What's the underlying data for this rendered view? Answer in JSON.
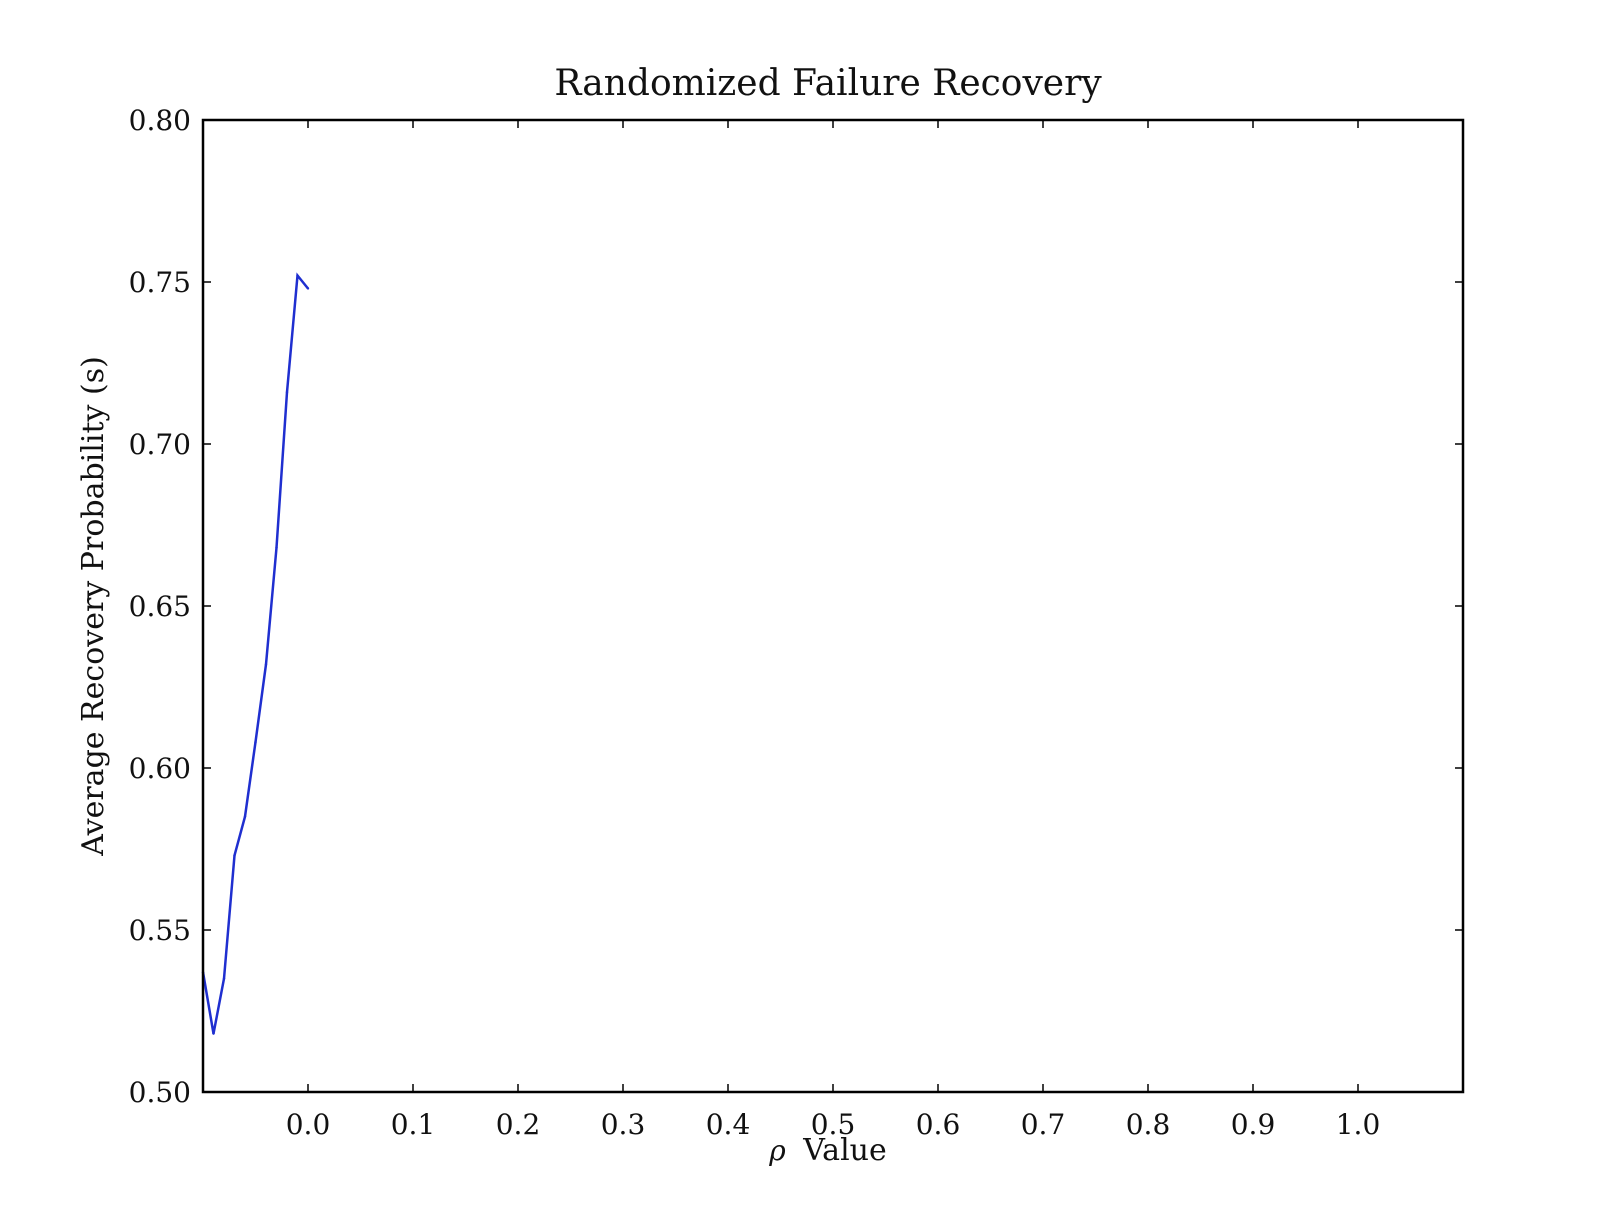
{
  "chart_data": {
    "type": "line",
    "title": "Randomized Failure Recovery",
    "xlabel_symbol": "ρ",
    "xlabel": "Value",
    "ylabel": "Average Recovery Probability (s)",
    "xlim": [
      -0.1,
      1.1
    ],
    "ylim": [
      0.5,
      0.8
    ],
    "xticks": [
      0.0,
      0.1,
      0.2,
      0.3,
      0.4,
      0.5,
      0.6,
      0.7,
      0.8,
      0.9,
      1.0
    ],
    "xtick_labels": [
      "0.0",
      "0.1",
      "0.2",
      "0.3",
      "0.4",
      "0.5",
      "0.6",
      "0.7",
      "0.8",
      "0.9",
      "1.0"
    ],
    "yticks": [
      0.5,
      0.55,
      0.6,
      0.65,
      0.7,
      0.75,
      0.8
    ],
    "ytick_labels": [
      "0.50",
      "0.55",
      "0.60",
      "0.65",
      "0.70",
      "0.75",
      "0.80"
    ],
    "grid": false,
    "legend": "none",
    "colors": {
      "series": "#1f2fd0",
      "axes": "#000000"
    },
    "series": [
      {
        "x": [
          -0.1,
          -0.09,
          -0.08,
          -0.07,
          -0.06,
          -0.05,
          -0.04,
          -0.03,
          -0.02,
          -0.01,
          0.0
        ],
        "y": [
          0.537,
          0.518,
          0.535,
          0.573,
          0.585,
          0.608,
          0.632,
          0.668,
          0.716,
          0.752,
          0.748
        ]
      }
    ]
  }
}
